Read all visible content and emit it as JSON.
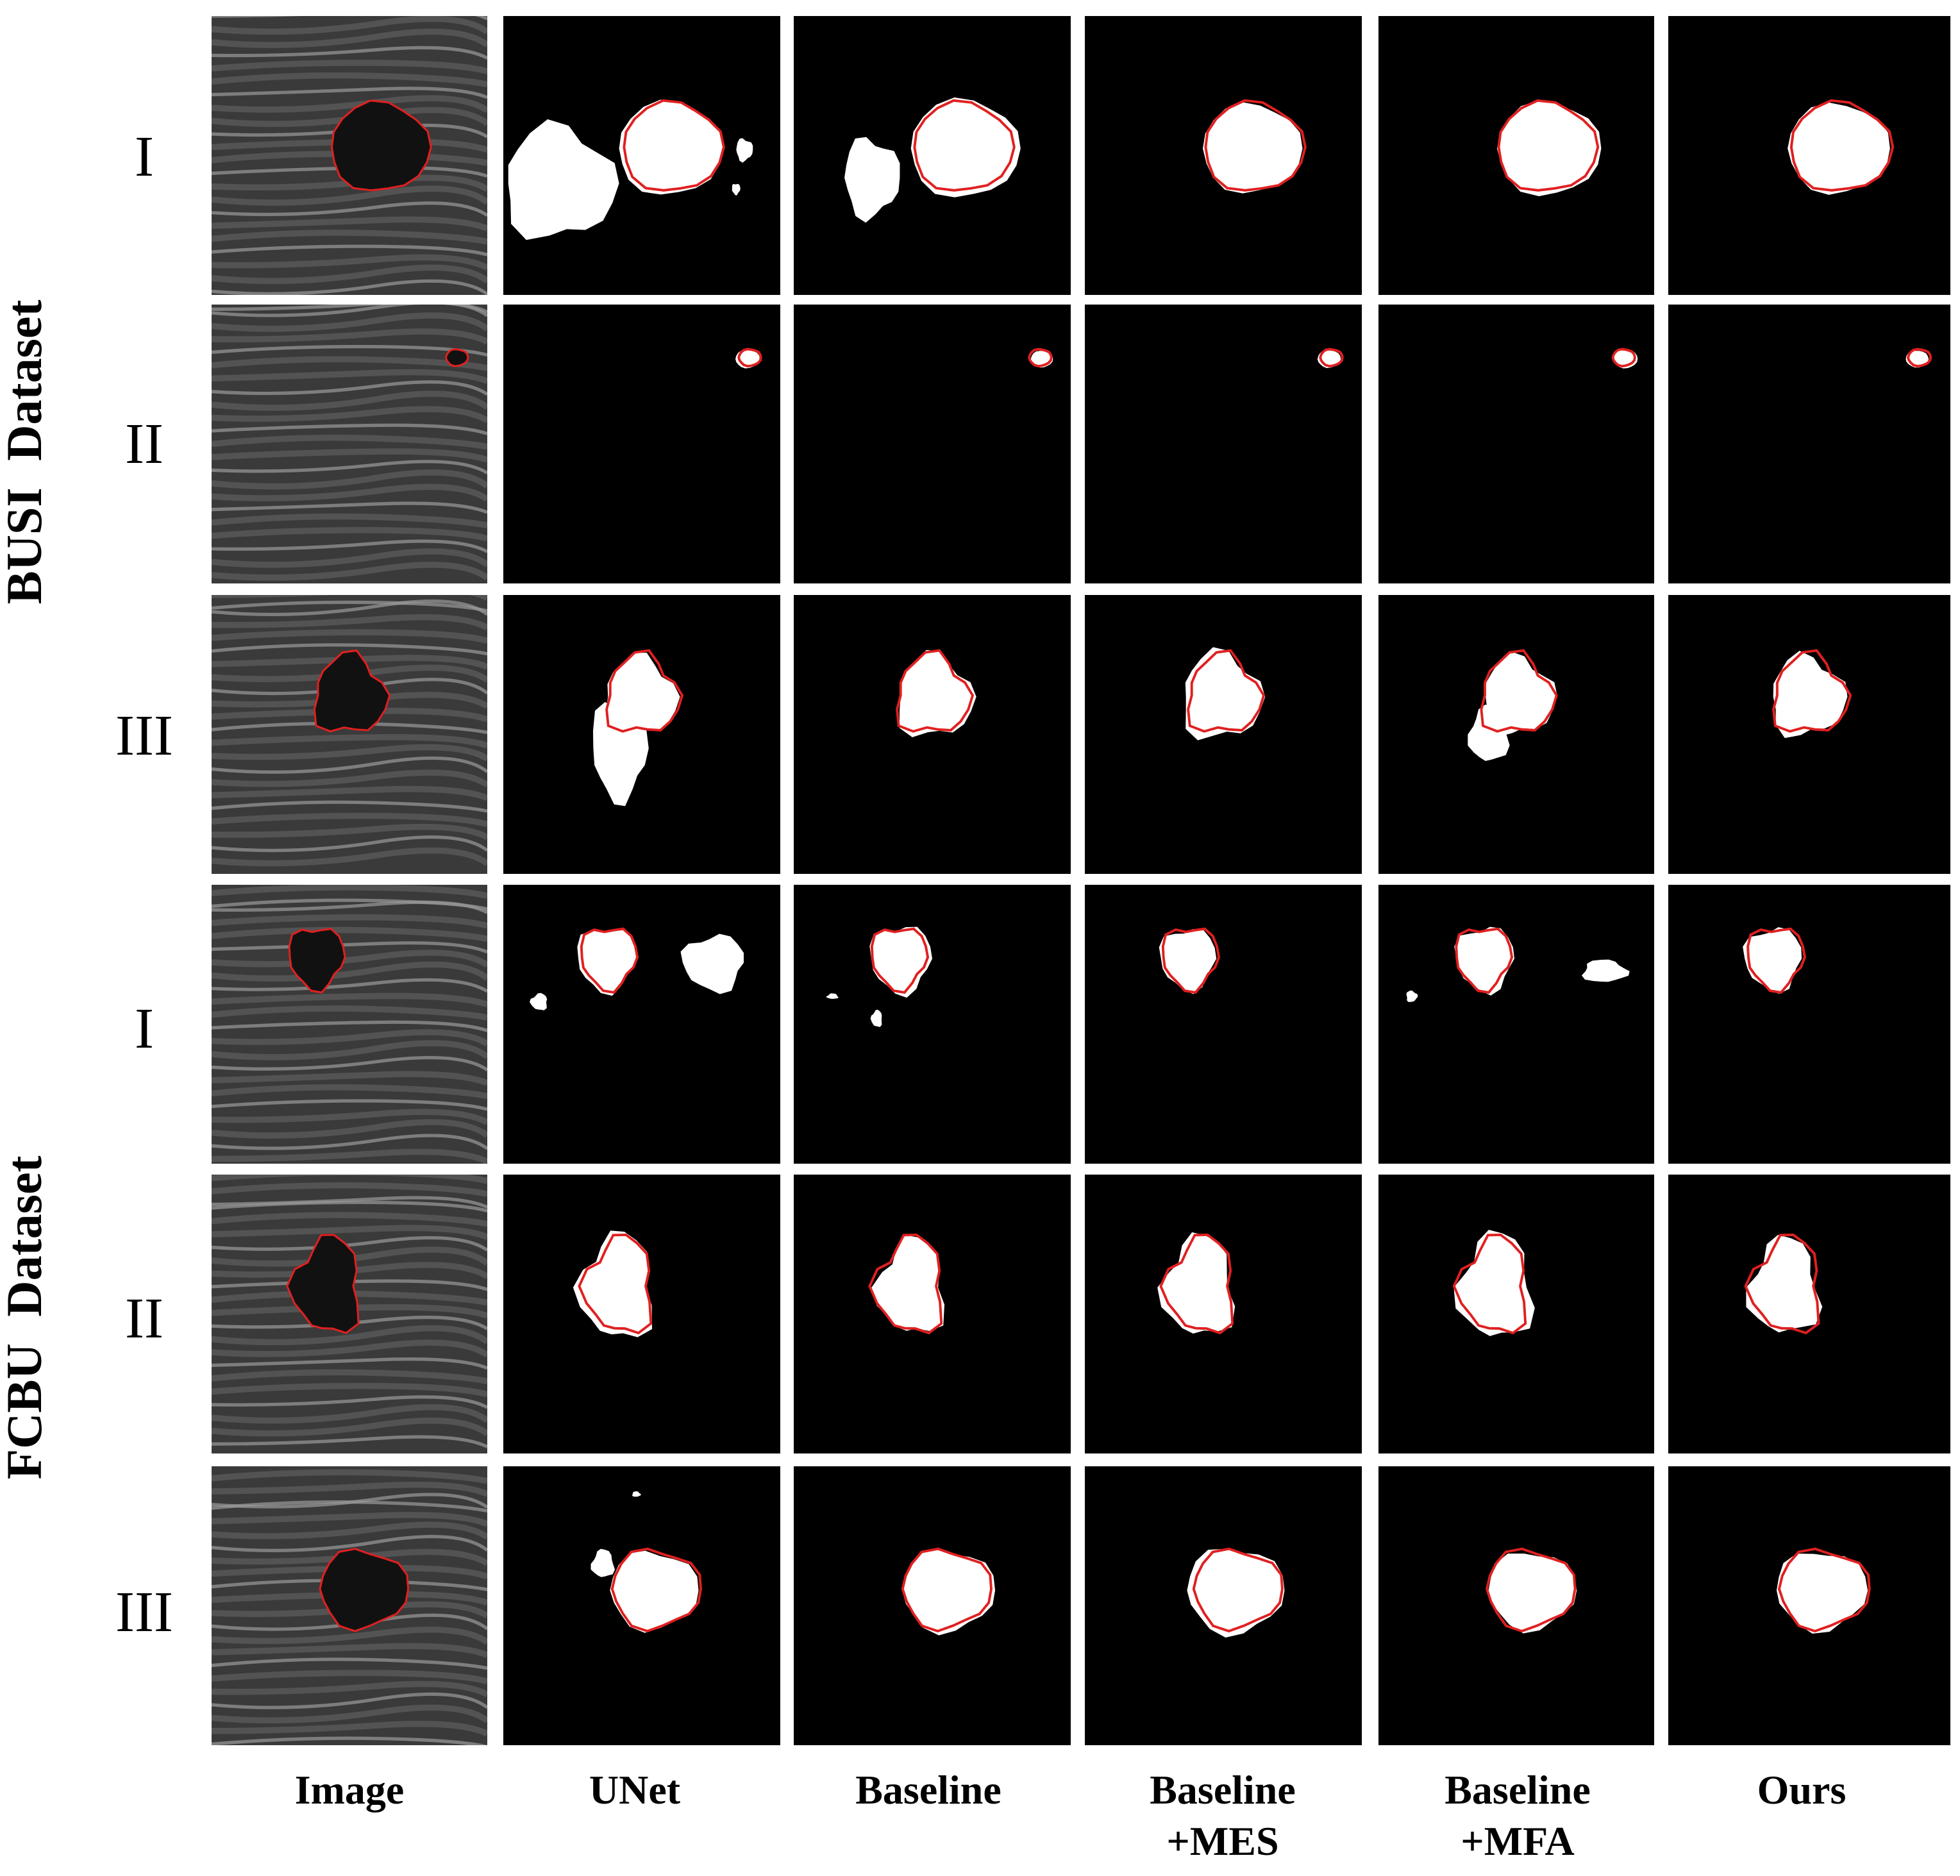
{
  "groups": [
    {
      "label": "BUSI  Dataset"
    },
    {
      "label": "FCBU  Dataset"
    }
  ],
  "row_labels": [
    "I",
    "II",
    "III",
    "I",
    "II",
    "III"
  ],
  "columns": [
    "Image",
    "UNet",
    "Baseline",
    "Baseline\n+MES",
    "Baseline\n+MFA",
    "Ours"
  ],
  "colors": {
    "contour": "#e02020",
    "mask": "#ffffff",
    "background": "#000000",
    "ultrasound_base": "#3a3a3a"
  }
}
